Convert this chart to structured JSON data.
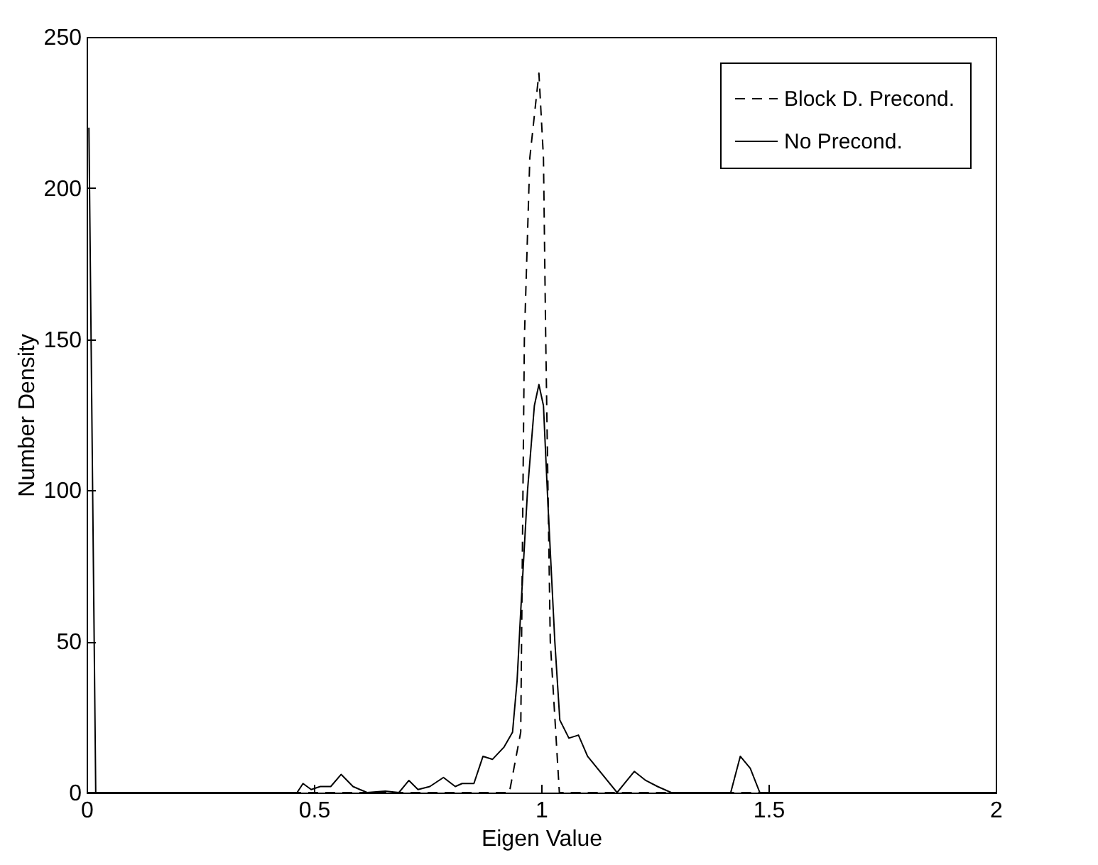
{
  "chart_data": {
    "type": "line",
    "xlabel": "Eigen Value",
    "ylabel": "Number Density",
    "xlim": [
      0,
      2
    ],
    "xticks": [
      0,
      0.5,
      1,
      1.5,
      2
    ],
    "ylim": [
      0,
      250
    ],
    "yticks": [
      0,
      50,
      100,
      150,
      200,
      250
    ],
    "grid": false,
    "legend": "top right",
    "marker": "none",
    "series": [
      {
        "name": "Block D. Precond.",
        "color": "#000000",
        "line_style": "dashed",
        "x": [
          0,
          0.93,
          0.955,
          0.963,
          0.975,
          0.995,
          1.005,
          1.01,
          1.02,
          1.04,
          2
        ],
        "values": [
          0,
          0,
          20,
          150,
          210,
          238,
          210,
          150,
          50,
          0,
          0
        ]
      },
      {
        "name": "No Precond.",
        "color": "#000000",
        "line_style": "solid",
        "x": [
          0.005,
          0.02,
          0.463,
          0.476,
          0.494,
          0.514,
          0.537,
          0.56,
          0.586,
          0.617,
          0.657,
          0.687,
          0.709,
          0.729,
          0.755,
          0.785,
          0.811,
          0.826,
          0.852,
          0.872,
          0.893,
          0.918,
          0.937,
          0.947,
          0.955,
          0.97,
          0.985,
          0.995,
          1.005,
          1.015,
          1.03,
          1.041,
          1.061,
          1.082,
          1.102,
          1.167,
          1.205,
          1.23,
          1.256,
          1.286,
          1.417,
          1.438,
          1.46,
          1.481,
          2
        ],
        "values": [
          220,
          0,
          0,
          3,
          1,
          2,
          2,
          6,
          2,
          0,
          0.5,
          0,
          4,
          1,
          2,
          5,
          2,
          3,
          3,
          12,
          11,
          15,
          20,
          37,
          60,
          100,
          128,
          135,
          128,
          95,
          50,
          24,
          18,
          19,
          12,
          0,
          7,
          4,
          2,
          0,
          0,
          12,
          8,
          0,
          0
        ]
      }
    ]
  }
}
